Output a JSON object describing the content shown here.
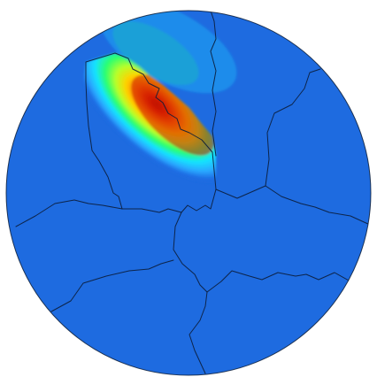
{
  "figure": {
    "kind": "field-heatmap-on-disk",
    "colormap": "jet",
    "background_color": "#ffffff",
    "base_color": "#1e6be0",
    "boundary_color": "#0b1d3a"
  }
}
